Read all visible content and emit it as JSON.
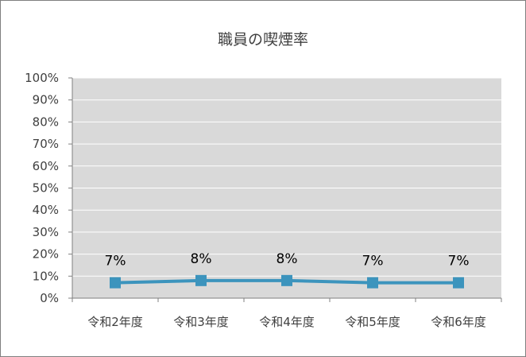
{
  "chart_data": {
    "type": "line",
    "title": "職員の喫煙率",
    "categories": [
      "令和2年度",
      "令和3年度",
      "令和4年度",
      "令和5年度",
      "令和6年度"
    ],
    "series": [
      {
        "values": [
          7,
          8,
          8,
          7,
          7
        ]
      }
    ],
    "data_labels": [
      "7%",
      "8%",
      "8%",
      "7%",
      "7%"
    ],
    "ylim": [
      0,
      100
    ],
    "y_ticks": [
      "0%",
      "10%",
      "20%",
      "30%",
      "40%",
      "50%",
      "60%",
      "70%",
      "80%",
      "90%",
      "100%"
    ],
    "y_tick_values": [
      0,
      10,
      20,
      30,
      40,
      50,
      60,
      70,
      80,
      90,
      100
    ],
    "xlabel": "",
    "ylabel": "",
    "grid": true,
    "legend": "none"
  },
  "colors": {
    "plot_background": "#d9d9d9",
    "gridline": "#ffffff",
    "series_line": "#3c94bd",
    "axis": "#808080",
    "text": "#404040"
  }
}
